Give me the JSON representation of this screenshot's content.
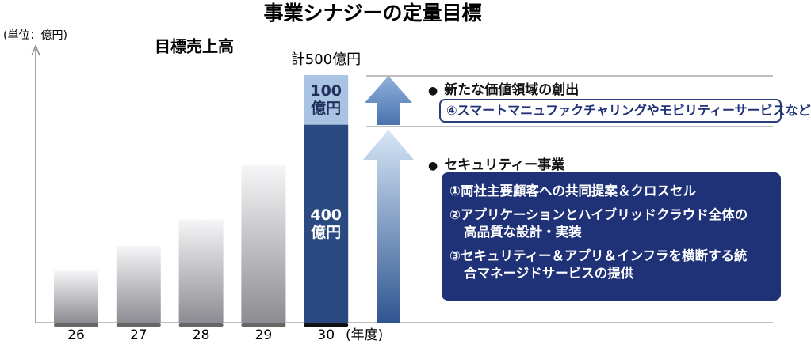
{
  "chart_data": {
    "type": "bar",
    "stacked": true,
    "title": "事業シナジーの定量目標",
    "unit_label": "(単位：億円)",
    "subtitle": "目標売上高",
    "total_label": "計500億円",
    "x_label": "(年度)",
    "categories": [
      "26",
      "27",
      "28",
      "29",
      "30"
    ],
    "series": [
      {
        "colors": [
          "#8c8c92",
          "#8c8c92",
          "#8c8c92",
          "#8c8c92",
          "#2b4a82"
        ],
        "gradient": [
          true,
          true,
          true,
          true,
          false
        ],
        "values": [
          105,
          155,
          209,
          318,
          400
        ],
        "value_labels": [
          null,
          null,
          null,
          null,
          "400億円"
        ],
        "label_color": "#ffffff"
      },
      {
        "colors": [
          null,
          null,
          null,
          null,
          "#a9c3e3"
        ],
        "gradient": [
          false,
          false,
          false,
          false,
          false
        ],
        "values": [
          null,
          null,
          null,
          null,
          100
        ],
        "value_labels": [
          null,
          null,
          null,
          null,
          "100億円"
        ],
        "label_color": "#1f2f5a"
      }
    ],
    "annotations": [
      {
        "heading": "新たな価値領域の創出",
        "items": [
          "④スマートマニュファクチャリングやモビリティーサービスなど"
        ]
      },
      {
        "heading": "セキュリティー事業",
        "items": [
          "①両社主要顧客への共同提案＆クロスセル",
          "②アプリケーションとハイブリッドクラウド全体の高品質な設計・実装",
          "③セキュリティー＆アプリ＆インフラを横断する統合マネージドサービスの提供"
        ]
      }
    ]
  }
}
